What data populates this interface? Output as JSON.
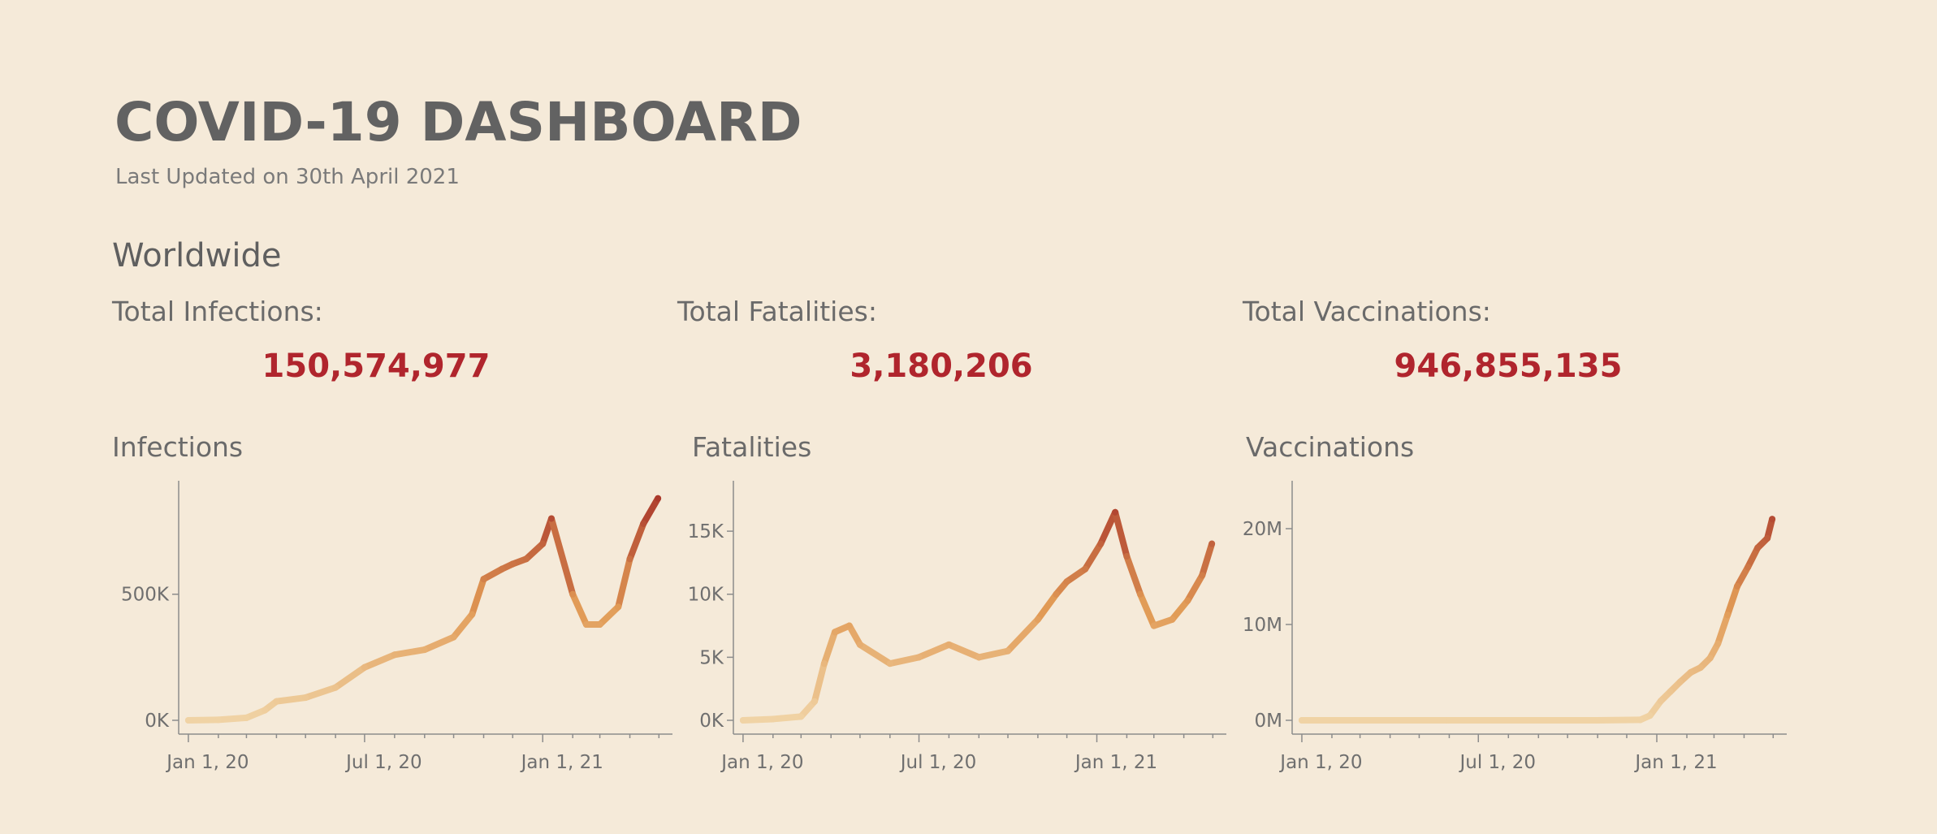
{
  "header": {
    "title": "COVID-19 DASHBOARD",
    "subtitle": "Last Updated on 30th April 2021"
  },
  "region": "Worldwide",
  "kpis": [
    {
      "label": "Total Infections:",
      "value": "150,574,977"
    },
    {
      "label": "Total Fatalities:",
      "value": "3,180,206"
    },
    {
      "label": "Total Vaccinations:",
      "value": "946,855,135"
    }
  ],
  "colors": {
    "background": "#F5EAD9",
    "kpi_value": "#B0252D",
    "line_low": "#F0D3A5",
    "line_mid": "#E19A55",
    "line_high": "#A8352A"
  },
  "chart_data": [
    {
      "type": "line",
      "title": "Infections",
      "x": [
        "2020-01-01",
        "2020-02-01",
        "2020-03-01",
        "2020-03-20",
        "2020-04-01",
        "2020-05-01",
        "2020-06-01",
        "2020-07-01",
        "2020-08-01",
        "2020-09-01",
        "2020-10-01",
        "2020-10-20",
        "2020-11-01",
        "2020-11-20",
        "2020-12-01",
        "2020-12-15",
        "2021-01-01",
        "2021-01-10",
        "2021-02-01",
        "2021-02-15",
        "2021-03-01",
        "2021-03-20",
        "2021-04-01",
        "2021-04-15",
        "2021-04-30"
      ],
      "series": [
        {
          "values": [
            0,
            2000,
            10000,
            40000,
            75000,
            90000,
            130000,
            210000,
            260000,
            280000,
            330000,
            420000,
            560000,
            600000,
            620000,
            640000,
            700000,
            800000,
            500000,
            380000,
            380000,
            450000,
            640000,
            780000,
            880000
          ]
        }
      ],
      "yticks": [
        "0K",
        "500K"
      ],
      "ytick_values": [
        0,
        500000
      ],
      "ylim": [
        0,
        950000
      ],
      "xticks": [
        "Jan 1, 20",
        "Jul 1, 20",
        "Jan 1, 21"
      ],
      "xtick_values": [
        "2020-01-01",
        "2020-07-01",
        "2021-01-01"
      ],
      "xlim": [
        "2019-12-22",
        "2021-05-15"
      ]
    },
    {
      "type": "line",
      "title": "Fatalities",
      "x": [
        "2020-01-01",
        "2020-02-01",
        "2020-03-01",
        "2020-03-15",
        "2020-03-25",
        "2020-04-05",
        "2020-04-20",
        "2020-05-01",
        "2020-06-01",
        "2020-07-01",
        "2020-08-01",
        "2020-09-01",
        "2020-10-01",
        "2020-11-01",
        "2020-11-20",
        "2020-12-01",
        "2020-12-20",
        "2021-01-05",
        "2021-01-20",
        "2021-02-01",
        "2021-02-15",
        "2021-03-01",
        "2021-03-20",
        "2021-04-05",
        "2021-04-20",
        "2021-04-30"
      ],
      "series": [
        {
          "values": [
            0,
            100,
            300,
            1500,
            4500,
            7000,
            7500,
            6000,
            4500,
            5000,
            6000,
            5000,
            5500,
            8000,
            10000,
            11000,
            12000,
            14000,
            16500,
            13000,
            10000,
            7500,
            8000,
            9500,
            11500,
            14000
          ]
        }
      ],
      "yticks": [
        "0K",
        "5K",
        "10K",
        "15K"
      ],
      "ytick_values": [
        0,
        5000,
        10000,
        15000
      ],
      "ylim": [
        0,
        19000
      ],
      "xticks": [
        "Jan 1, 20",
        "Jul 1, 20",
        "Jan 1, 21"
      ],
      "xtick_values": [
        "2020-01-01",
        "2020-07-01",
        "2021-01-01"
      ],
      "xlim": [
        "2019-12-22",
        "2021-05-15"
      ]
    },
    {
      "type": "line",
      "title": "Vaccinations",
      "x": [
        "2020-01-01",
        "2020-06-01",
        "2020-11-01",
        "2020-12-15",
        "2020-12-25",
        "2021-01-05",
        "2021-01-15",
        "2021-01-25",
        "2021-02-05",
        "2021-02-15",
        "2021-02-25",
        "2021-03-05",
        "2021-03-15",
        "2021-03-25",
        "2021-04-05",
        "2021-04-15",
        "2021-04-25",
        "2021-04-30"
      ],
      "series": [
        {
          "values": [
            0,
            0,
            0,
            50000,
            500000,
            2000000,
            3000000,
            4000000,
            5000000,
            5500000,
            6500000,
            8000000,
            11000000,
            14000000,
            16000000,
            18000000,
            19000000,
            21000000
          ]
        }
      ],
      "yticks": [
        "0M",
        "10M",
        "20M"
      ],
      "ytick_values": [
        0,
        10000000,
        20000000
      ],
      "ylim": [
        0,
        25000000
      ],
      "xticks": [
        "Jan 1, 20",
        "Jul 1, 20",
        "Jan 1, 21"
      ],
      "xtick_values": [
        "2020-01-01",
        "2020-07-01",
        "2021-01-01"
      ],
      "xlim": [
        "2019-12-22",
        "2021-05-15"
      ]
    }
  ]
}
